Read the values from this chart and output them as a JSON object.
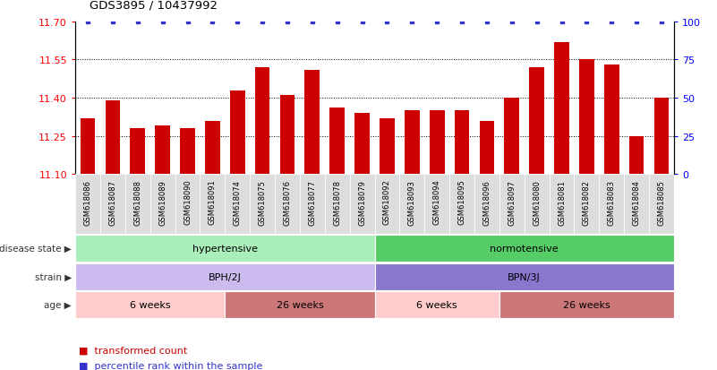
{
  "title": "GDS3895 / 10437992",
  "samples": [
    "GSM618086",
    "GSM618087",
    "GSM618088",
    "GSM618089",
    "GSM618090",
    "GSM618091",
    "GSM618074",
    "GSM618075",
    "GSM618076",
    "GSM618077",
    "GSM618078",
    "GSM618079",
    "GSM618092",
    "GSM618093",
    "GSM618094",
    "GSM618095",
    "GSM618096",
    "GSM618097",
    "GSM618080",
    "GSM618081",
    "GSM618082",
    "GSM618083",
    "GSM618084",
    "GSM618085"
  ],
  "bar_values": [
    11.32,
    11.39,
    11.28,
    11.29,
    11.28,
    11.31,
    11.43,
    11.52,
    11.41,
    11.51,
    11.36,
    11.34,
    11.32,
    11.35,
    11.35,
    11.35,
    11.31,
    11.4,
    11.52,
    11.62,
    11.55,
    11.53,
    11.25,
    11.4
  ],
  "percentile_values": [
    100,
    100,
    100,
    100,
    100,
    100,
    100,
    100,
    100,
    100,
    100,
    100,
    100,
    100,
    100,
    100,
    100,
    100,
    100,
    100,
    100,
    100,
    100,
    100
  ],
  "bar_color": "#CC0000",
  "percentile_color": "#3333CC",
  "ylim_left": [
    11.1,
    11.7
  ],
  "ylim_right": [
    0,
    100
  ],
  "yticks_left": [
    11.1,
    11.25,
    11.4,
    11.55,
    11.7
  ],
  "yticks_right": [
    0,
    25,
    50,
    75,
    100
  ],
  "grid_values": [
    11.25,
    11.4,
    11.55
  ],
  "disease_state_regions": [
    {
      "start": 0,
      "end": 12,
      "color": "#AAEEBB",
      "label": "hypertensive"
    },
    {
      "start": 12,
      "end": 24,
      "color": "#55CC66",
      "label": "normotensive"
    }
  ],
  "strain_regions": [
    {
      "start": 0,
      "end": 12,
      "color": "#CCBBEE",
      "label": "BPH/2J"
    },
    {
      "start": 12,
      "end": 24,
      "color": "#8877CC",
      "label": "BPN/3J"
    }
  ],
  "age_regions": [
    {
      "start": 0,
      "end": 6,
      "color": "#FFCCCC",
      "label": "6 weeks"
    },
    {
      "start": 6,
      "end": 12,
      "color": "#CC7777",
      "label": "26 weeks"
    },
    {
      "start": 12,
      "end": 17,
      "color": "#FFCCCC",
      "label": "6 weeks"
    },
    {
      "start": 17,
      "end": 24,
      "color": "#CC7777",
      "label": "26 weeks"
    }
  ],
  "row_label_names": [
    "disease state",
    "strain",
    "age"
  ],
  "legend_items": [
    {
      "label": "transformed count",
      "color": "#CC0000"
    },
    {
      "label": "percentile rank within the sample",
      "color": "#3333CC"
    }
  ],
  "bg_color": "#FFFFFF"
}
